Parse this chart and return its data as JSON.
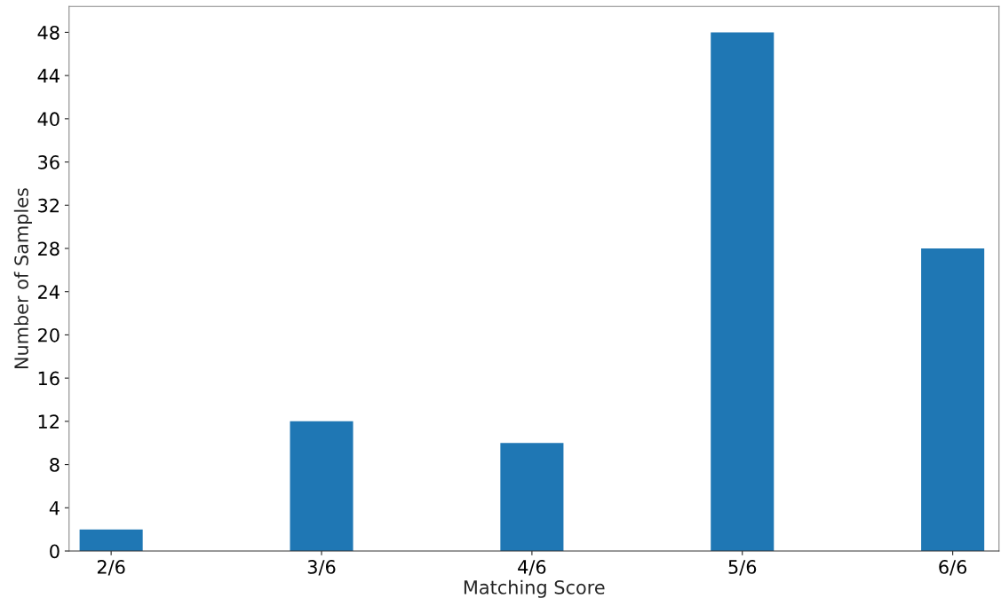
{
  "chart_data": {
    "type": "bar",
    "xlabel": "Matching Score",
    "ylabel": "Number of Samples",
    "categories": [
      "2/6",
      "3/6",
      "4/6",
      "5/6",
      "6/6"
    ],
    "values": [
      2,
      12,
      10,
      48,
      28
    ],
    "color": "#1f77b4",
    "ylim": [
      0,
      50.4
    ],
    "yticks": [
      0,
      4,
      8,
      12,
      16,
      20,
      24,
      28,
      32,
      36,
      40,
      44,
      48
    ]
  }
}
